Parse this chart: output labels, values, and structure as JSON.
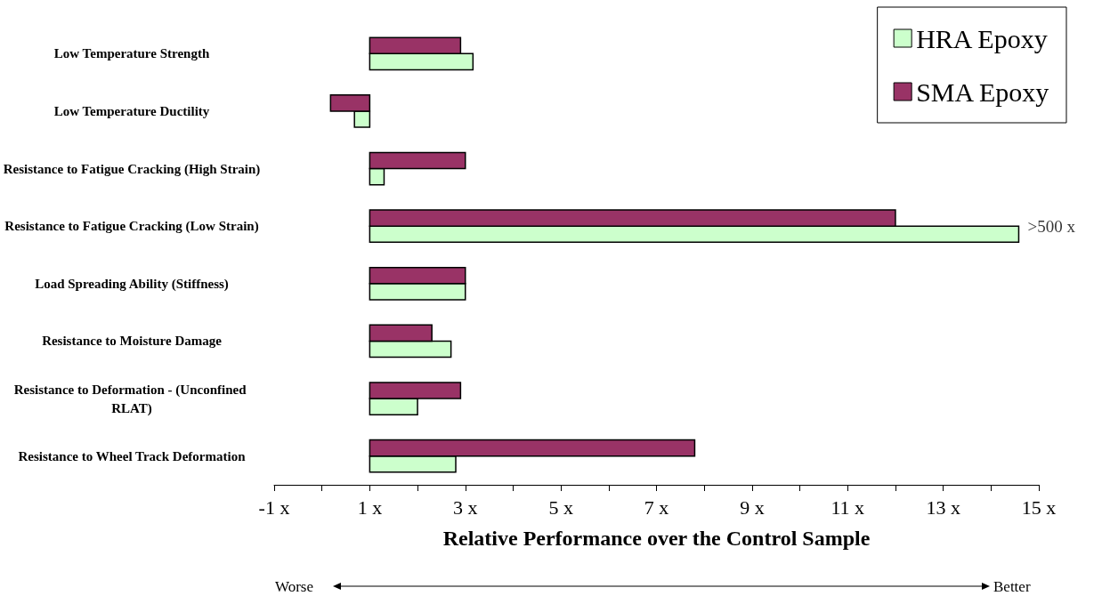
{
  "chart_data": {
    "type": "bar",
    "orientation": "horizontal",
    "xlabel": "Relative Performance over the Control Sample",
    "categories": [
      "Low Temperature Strength",
      "Low Temperature Ductility",
      "Resistance to Fatigue Cracking (High Strain)",
      "Resistance to Fatigue Cracking (Low Strain)",
      "Load Spreading Ability (Stiffness)",
      "Resistance to Moisture Damage",
      "Resistance to Deformation - (Unconfined RLAT)",
      "Resistance to Wheel Track Deformation"
    ],
    "series": [
      {
        "name": "HRA Epoxy",
        "color": "#ccffcc",
        "base": [
          1,
          1,
          1,
          1,
          1,
          1,
          1,
          1
        ],
        "values": [
          2.16,
          -0.32,
          0.3,
          13.58,
          2.0,
          1.7,
          1.0,
          1.8
        ]
      },
      {
        "name": "SMA Epoxy",
        "color": "#993366",
        "base": [
          1,
          1,
          1,
          1,
          1,
          1,
          1,
          1
        ],
        "values": [
          1.9,
          -0.82,
          2.0,
          11.0,
          2.0,
          1.3,
          1.9,
          6.8
        ]
      }
    ],
    "xlim": [
      -1,
      15
    ],
    "xticks": [
      {
        "value": -1,
        "label": "-1 x"
      },
      {
        "value": 0,
        "label": null
      },
      {
        "value": 1,
        "label": "1 x"
      },
      {
        "value": 2,
        "label": null
      },
      {
        "value": 3,
        "label": "3 x"
      },
      {
        "value": 4,
        "label": null
      },
      {
        "value": 5,
        "label": "5 x"
      },
      {
        "value": 6,
        "label": null
      },
      {
        "value": 7,
        "label": "7 x"
      },
      {
        "value": 8,
        "label": null
      },
      {
        "value": 9,
        "label": "9 x"
      },
      {
        "value": 10,
        "label": null
      },
      {
        "value": 11,
        "label": "11 x"
      },
      {
        "value": 12,
        "label": null
      },
      {
        "value": 13,
        "label": "13 x"
      },
      {
        "value": 14,
        "label": null
      },
      {
        "value": 15,
        "label": "15 x"
      }
    ],
    "annotations": [
      {
        "text": ">500 x",
        "x": 14.58,
        "y": "Resistance to Fatigue Cracking (Low Strain)"
      },
      "Worse",
      "Better"
    ],
    "grid": false,
    "legend": "top right"
  }
}
